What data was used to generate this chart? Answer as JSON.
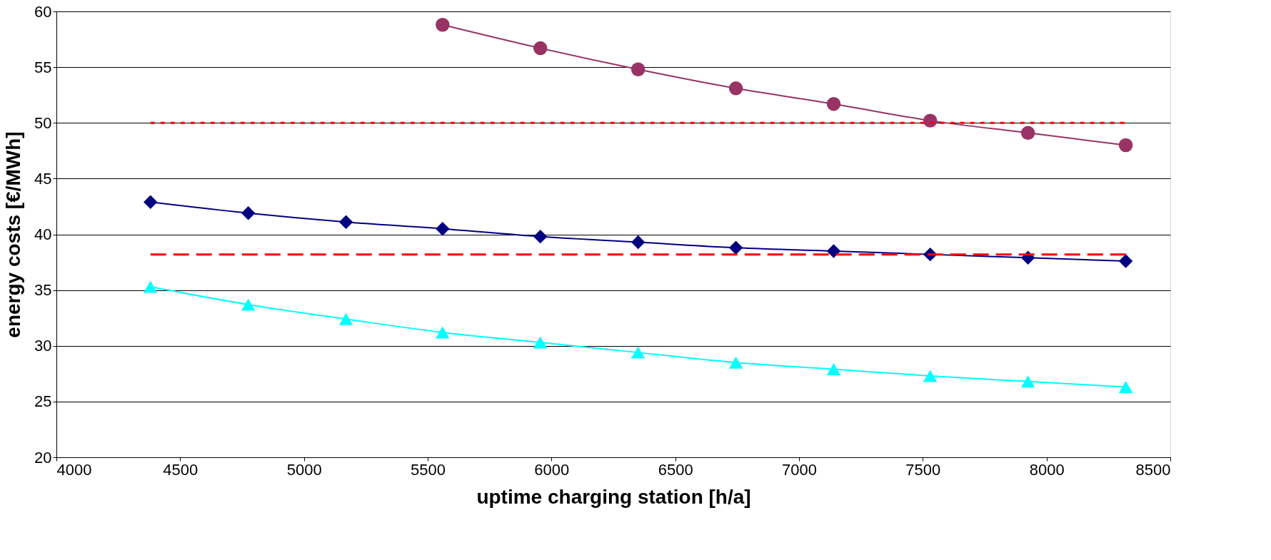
{
  "chart_data": {
    "type": "line",
    "xlabel": "uptime charging station [h/a]",
    "ylabel": "energy costs [€/MWh]",
    "xlim": [
      4000,
      8500
    ],
    "xticks": [
      4000,
      4500,
      5000,
      5500,
      6000,
      6500,
      7000,
      7500,
      8000,
      8500
    ],
    "ylim": [
      20,
      60
    ],
    "yticks": [
      20,
      25,
      30,
      35,
      40,
      45,
      50,
      55,
      60
    ],
    "grid": "y",
    "x": [
      4380,
      4775,
      5170,
      5560,
      5955,
      6350,
      6745,
      7140,
      7530,
      7925,
      8320
    ],
    "series": [
      {
        "color": "#993366",
        "marker": "circle",
        "line_style": "solid",
        "values": [
          null,
          null,
          null,
          58.8,
          56.7,
          54.8,
          53.1,
          51.7,
          50.2,
          49.1,
          48.0
        ]
      },
      {
        "color": "#000080",
        "marker": "diamond",
        "line_style": "solid",
        "values": [
          42.9,
          41.9,
          41.1,
          40.5,
          39.8,
          39.3,
          38.8,
          38.5,
          38.2,
          37.9,
          37.6
        ]
      },
      {
        "color": "#00ffff",
        "marker": "triangle",
        "line_style": "solid",
        "values": [
          35.3,
          33.7,
          32.4,
          31.2,
          30.3,
          29.4,
          28.5,
          27.9,
          27.3,
          26.8,
          26.3
        ]
      },
      {
        "color": "#ff0000",
        "marker": "none",
        "line_style": "dotted",
        "values": [
          50,
          50,
          50,
          50,
          50,
          50,
          50,
          50,
          50,
          50,
          50
        ]
      },
      {
        "color": "#ff0000",
        "marker": "none",
        "line_style": "dashed",
        "values": [
          38.2,
          38.2,
          38.2,
          38.2,
          38.2,
          38.2,
          38.2,
          38.2,
          38.2,
          38.2,
          38.2
        ]
      }
    ]
  }
}
